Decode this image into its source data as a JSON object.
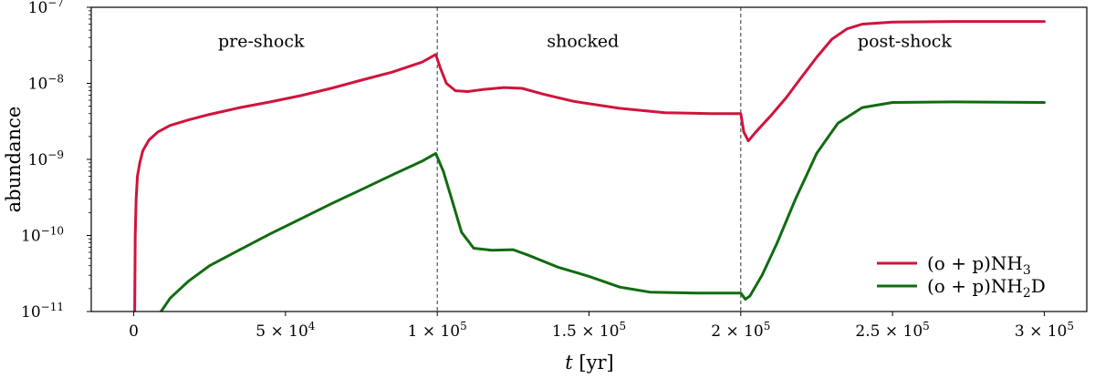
{
  "chart_data": {
    "type": "line",
    "xlabel": "t [yr]",
    "xlabel_parts": {
      "var": "t",
      "unit": " [yr]"
    },
    "ylabel": "abundance",
    "y_scale": "log",
    "xlim": [
      -14000,
      314000
    ],
    "ylim": [
      1e-11,
      1e-07
    ],
    "x_ticks": [
      {
        "value": 0,
        "mant": "0",
        "exp": ""
      },
      {
        "value": 50000,
        "mant": "5 × 10",
        "exp": "4"
      },
      {
        "value": 100000,
        "mant": "1 × 10",
        "exp": "5"
      },
      {
        "value": 150000,
        "mant": "1.5 × 10",
        "exp": "5"
      },
      {
        "value": 200000,
        "mant": "2 × 10",
        "exp": "5"
      },
      {
        "value": 250000,
        "mant": "2.5 × 10",
        "exp": "5"
      },
      {
        "value": 300000,
        "mant": "3 × 10",
        "exp": "5"
      }
    ],
    "y_ticks": [
      {
        "value": 1e-11,
        "base": "10",
        "exp": "−11"
      },
      {
        "value": 1e-10,
        "base": "10",
        "exp": "−10"
      },
      {
        "value": 1e-09,
        "base": "10",
        "exp": "−9"
      },
      {
        "value": 1e-08,
        "base": "10",
        "exp": "−8"
      },
      {
        "value": 1e-07,
        "base": "10",
        "exp": "−7"
      }
    ],
    "vlines": [
      100000,
      200000
    ],
    "regions": [
      {
        "label": "pre-shock",
        "x": 42000,
        "y": 3e-08
      },
      {
        "label": "shocked",
        "x": 148000,
        "y": 3e-08
      },
      {
        "label": "post-shock",
        "x": 254000,
        "y": 3e-08
      }
    ],
    "legend_position": "lower right",
    "series": [
      {
        "name": "(o + p)NH3",
        "label_main": "(o + p)NH",
        "label_sub": "3",
        "color": "#d0143c",
        "points": [
          [
            300,
            1e-11
          ],
          [
            500,
            1e-10
          ],
          [
            800,
            3e-10
          ],
          [
            1200,
            6e-10
          ],
          [
            2000,
            9e-10
          ],
          [
            3000,
            1.3e-09
          ],
          [
            5000,
            1.8e-09
          ],
          [
            8000,
            2.3e-09
          ],
          [
            12000,
            2.8e-09
          ],
          [
            18000,
            3.3e-09
          ],
          [
            25000,
            3.9e-09
          ],
          [
            35000,
            4.8e-09
          ],
          [
            45000,
            5.7e-09
          ],
          [
            55000,
            6.9e-09
          ],
          [
            65000,
            8.6e-09
          ],
          [
            75000,
            1.1e-08
          ],
          [
            85000,
            1.4e-08
          ],
          [
            95000,
            1.9e-08
          ],
          [
            99500,
            2.4e-08
          ],
          [
            101000,
            1.6e-08
          ],
          [
            103000,
            1e-08
          ],
          [
            106000,
            8e-09
          ],
          [
            110000,
            7.8e-09
          ],
          [
            115000,
            8.3e-09
          ],
          [
            122000,
            8.8e-09
          ],
          [
            128000,
            8.6e-09
          ],
          [
            135000,
            7.2e-09
          ],
          [
            145000,
            5.8e-09
          ],
          [
            160000,
            4.7e-09
          ],
          [
            175000,
            4.1e-09
          ],
          [
            190000,
            4e-09
          ],
          [
            200000,
            4e-09
          ],
          [
            201000,
            2.3e-09
          ],
          [
            202500,
            1.75e-09
          ],
          [
            205000,
            2.3e-09
          ],
          [
            210000,
            3.8e-09
          ],
          [
            215000,
            6.5e-09
          ],
          [
            220000,
            1.2e-08
          ],
          [
            225000,
            2.2e-08
          ],
          [
            230000,
            3.8e-08
          ],
          [
            235000,
            5.2e-08
          ],
          [
            240000,
            6e-08
          ],
          [
            250000,
            6.4e-08
          ],
          [
            270000,
            6.5e-08
          ],
          [
            300000,
            6.5e-08
          ]
        ]
      },
      {
        "name": "(o + p)NH2D",
        "label_main": "(o + p)NH",
        "label_sub": "2",
        "label_tail": "D",
        "color": "#116b11",
        "points": [
          [
            9000,
            1e-11
          ],
          [
            12000,
            1.5e-11
          ],
          [
            18000,
            2.5e-11
          ],
          [
            25000,
            4e-11
          ],
          [
            35000,
            6.5e-11
          ],
          [
            45000,
            1.05e-10
          ],
          [
            55000,
            1.65e-10
          ],
          [
            65000,
            2.6e-10
          ],
          [
            75000,
            4e-10
          ],
          [
            85000,
            6.2e-10
          ],
          [
            95000,
            9.5e-10
          ],
          [
            99500,
            1.2e-09
          ],
          [
            102000,
            7e-10
          ],
          [
            105000,
            2.8e-10
          ],
          [
            108000,
            1.1e-10
          ],
          [
            112000,
            6.8e-11
          ],
          [
            118000,
            6.4e-11
          ],
          [
            125000,
            6.5e-11
          ],
          [
            130000,
            5.5e-11
          ],
          [
            140000,
            3.8e-11
          ],
          [
            150000,
            2.9e-11
          ],
          [
            160000,
            2.1e-11
          ],
          [
            170000,
            1.8e-11
          ],
          [
            185000,
            1.75e-11
          ],
          [
            200000,
            1.75e-11
          ],
          [
            201500,
            1.45e-11
          ],
          [
            203000,
            1.6e-11
          ],
          [
            207000,
            3e-11
          ],
          [
            212000,
            8e-11
          ],
          [
            218000,
            3e-10
          ],
          [
            225000,
            1.2e-09
          ],
          [
            232000,
            3e-09
          ],
          [
            240000,
            4.8e-09
          ],
          [
            250000,
            5.6e-09
          ],
          [
            270000,
            5.7e-09
          ],
          [
            300000,
            5.6e-09
          ]
        ]
      }
    ]
  }
}
